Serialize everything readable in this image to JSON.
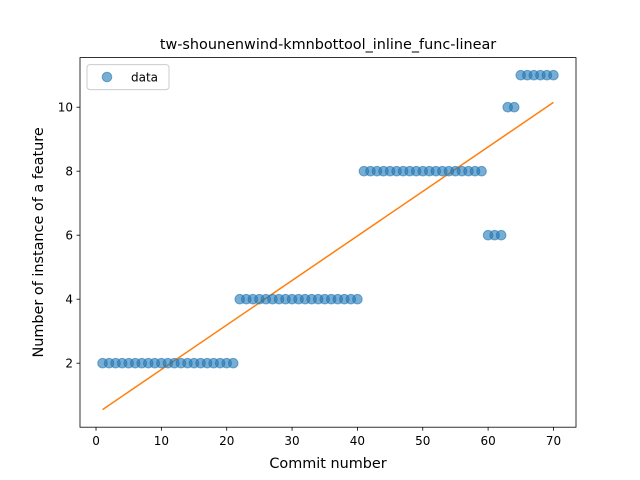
{
  "chart_data": {
    "type": "scatter",
    "title": "tw-shounenwind-kmnbottool_inline_func-linear",
    "xlabel": "Commit number",
    "ylabel": "Number of instance of a feature",
    "xlim": [
      -2.45,
      73.45
    ],
    "ylim": [
      -0.0,
      11.55
    ],
    "xticks": [
      0,
      10,
      20,
      30,
      40,
      50,
      60,
      70
    ],
    "yticks": [
      2,
      4,
      6,
      8,
      10
    ],
    "grid": false,
    "legend": {
      "placement": "upper-left",
      "entries": [
        "data"
      ]
    },
    "colors": {
      "data": "#1f77b4",
      "fit": "#ff7f0e"
    },
    "series": [
      {
        "name": "data",
        "kind": "scatter",
        "x": [
          1,
          2,
          3,
          4,
          5,
          6,
          7,
          8,
          9,
          10,
          11,
          12,
          13,
          14,
          15,
          16,
          17,
          18,
          19,
          20,
          21,
          22,
          23,
          24,
          25,
          26,
          27,
          28,
          29,
          30,
          31,
          32,
          33,
          34,
          35,
          36,
          37,
          38,
          39,
          40,
          41,
          42,
          43,
          44,
          45,
          46,
          47,
          48,
          49,
          50,
          51,
          52,
          53,
          54,
          55,
          56,
          57,
          58,
          59,
          60,
          61,
          62,
          63,
          64,
          65,
          66,
          67,
          68,
          69,
          70
        ],
        "y": [
          2,
          2,
          2,
          2,
          2,
          2,
          2,
          2,
          2,
          2,
          2,
          2,
          2,
          2,
          2,
          2,
          2,
          2,
          2,
          2,
          2,
          4,
          4,
          4,
          4,
          4,
          4,
          4,
          4,
          4,
          4,
          4,
          4,
          4,
          4,
          4,
          4,
          4,
          4,
          4,
          8,
          8,
          8,
          8,
          8,
          8,
          8,
          8,
          8,
          8,
          8,
          8,
          8,
          8,
          8,
          8,
          8,
          8,
          8,
          6,
          6,
          6,
          10,
          10,
          11,
          11,
          11,
          11,
          11,
          11
        ]
      },
      {
        "kind": "line",
        "x": [
          1,
          70
        ],
        "y": [
          0.55,
          10.15
        ]
      }
    ]
  }
}
